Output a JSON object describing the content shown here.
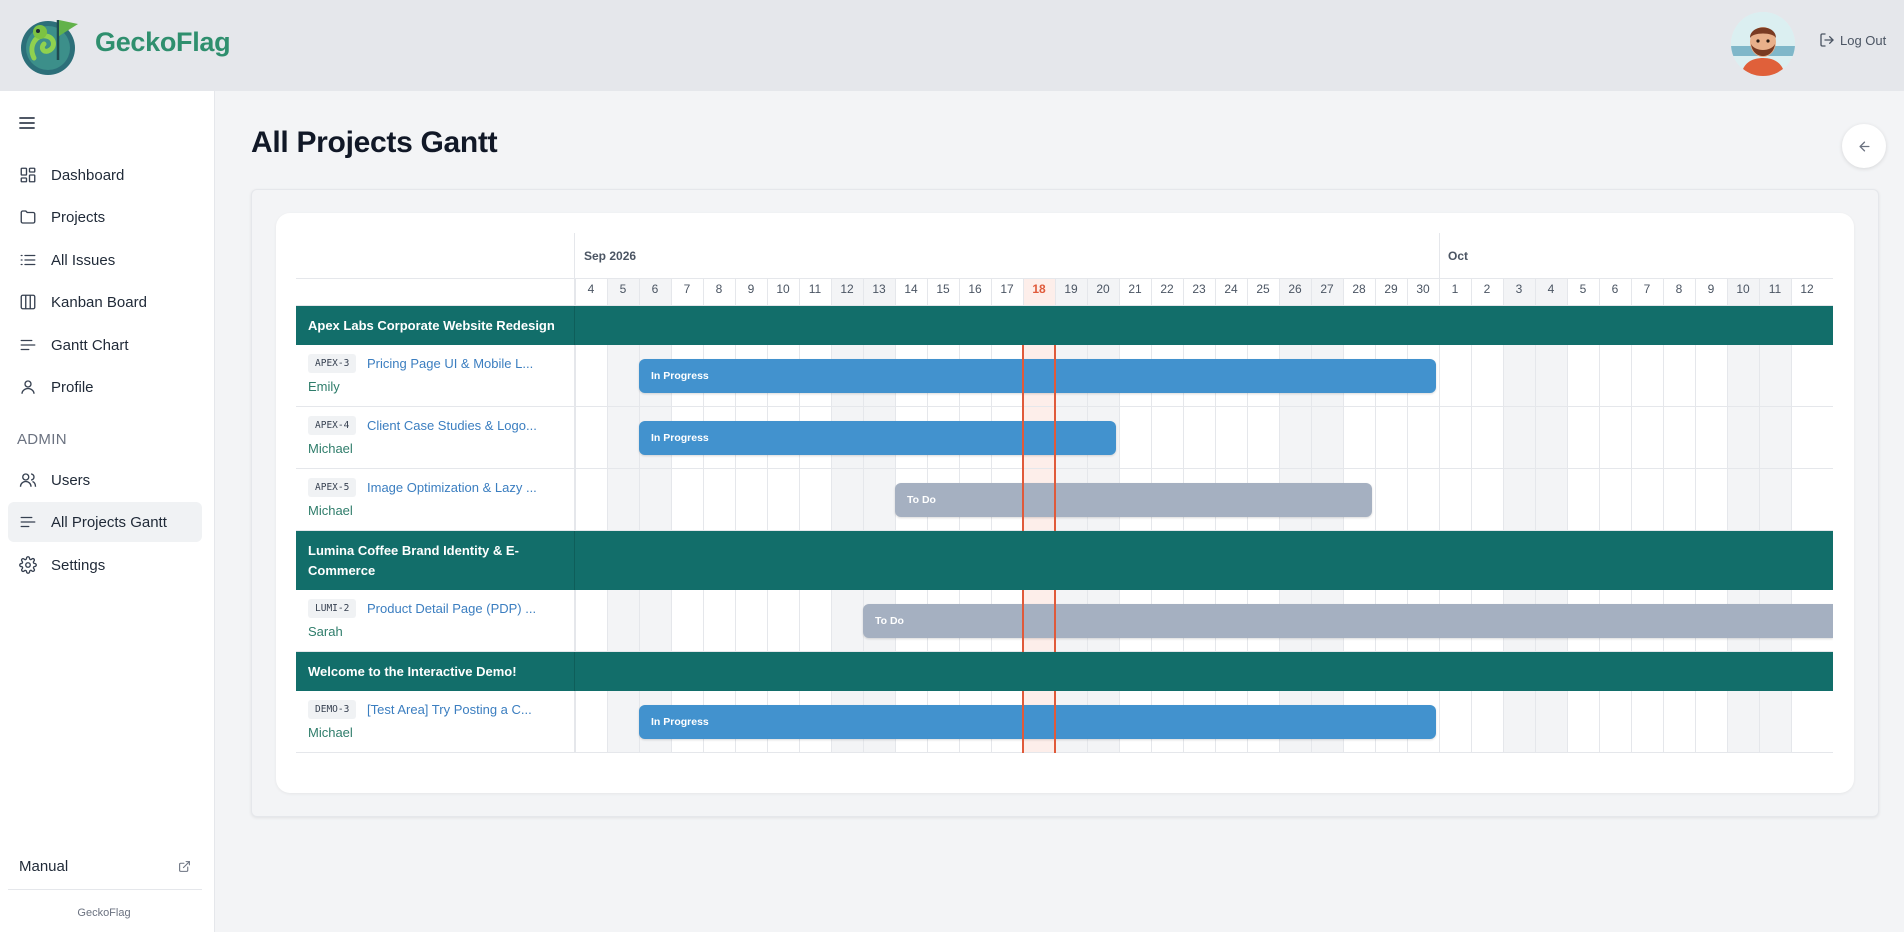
{
  "header": {
    "brand": "GeckoFlag",
    "logout_label": "Log Out"
  },
  "sidebar": {
    "items": [
      {
        "label": "Dashboard",
        "icon": "dashboard-icon"
      },
      {
        "label": "Projects",
        "icon": "folder-icon"
      },
      {
        "label": "All Issues",
        "icon": "list-icon"
      },
      {
        "label": "Kanban Board",
        "icon": "kanban-icon"
      },
      {
        "label": "Gantt Chart",
        "icon": "gantt-icon"
      },
      {
        "label": "Profile",
        "icon": "user-icon"
      }
    ],
    "admin_label": "ADMIN",
    "admin_items": [
      {
        "label": "Users",
        "icon": "users-icon"
      },
      {
        "label": "All Projects Gantt",
        "icon": "gantt-icon",
        "active": true
      },
      {
        "label": "Settings",
        "icon": "gear-icon"
      }
    ],
    "manual_label": "Manual",
    "footer": "GeckoFlag"
  },
  "page": {
    "title": "All Projects Gantt"
  },
  "gantt": {
    "months": [
      {
        "label": "Sep 2026",
        "start_index": 0
      },
      {
        "label": "Oct",
        "start_index": 27
      }
    ],
    "days": [
      "4",
      "5",
      "6",
      "7",
      "8",
      "9",
      "10",
      "11",
      "12",
      "13",
      "14",
      "15",
      "16",
      "17",
      "18",
      "19",
      "20",
      "21",
      "22",
      "23",
      "24",
      "25",
      "26",
      "27",
      "28",
      "29",
      "30",
      "1",
      "2",
      "3",
      "4",
      "5",
      "6",
      "7",
      "8",
      "9",
      "10",
      "11",
      "12"
    ],
    "today_index": 14,
    "weekend_indices": [
      1,
      2,
      8,
      9,
      15,
      16,
      22,
      23,
      29,
      30,
      36,
      37
    ],
    "rows": [
      {
        "type": "group",
        "title": "Apex Labs Corporate Website Redesign"
      },
      {
        "type": "issue",
        "key": "APEX-3",
        "title": "Pricing Page UI & Mobile L...",
        "assignee": "Emily",
        "status": "In Progress",
        "start_index": 2,
        "end_index": 26.9
      },
      {
        "type": "issue",
        "key": "APEX-4",
        "title": "Client Case Studies & Logo...",
        "assignee": "Michael",
        "status": "In Progress",
        "start_index": 2,
        "end_index": 16.9
      },
      {
        "type": "issue",
        "key": "APEX-5",
        "title": "Image Optimization & Lazy ...",
        "assignee": "Michael",
        "status": "To Do",
        "start_index": 10,
        "end_index": 24.9
      },
      {
        "type": "group",
        "title": "Lumina Coffee Brand Identity & E-Commerce",
        "tall": true
      },
      {
        "type": "issue",
        "key": "LUMI-2",
        "title": "Product Detail Page (PDP) ...",
        "assignee": "Sarah",
        "status": "To Do",
        "start_index": 9,
        "end_index": 40
      },
      {
        "type": "group",
        "title": "Welcome to the Interactive Demo!"
      },
      {
        "type": "issue",
        "key": "DEMO-3",
        "title": "[Test Area] Try Posting a C...",
        "assignee": "Michael",
        "status": "In Progress",
        "start_index": 2,
        "end_index": 26.9
      }
    ]
  }
}
